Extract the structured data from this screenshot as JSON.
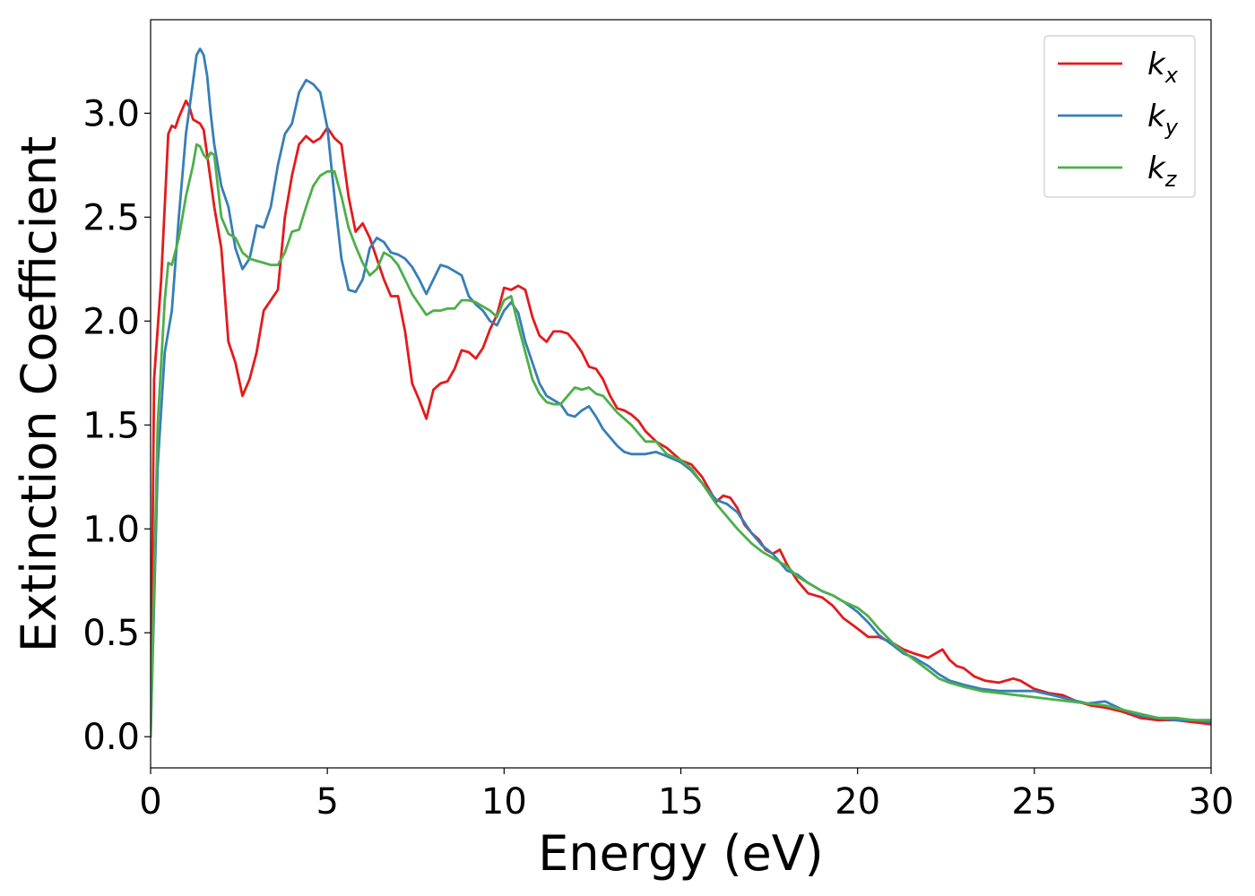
{
  "chart_data": {
    "type": "line",
    "title": "",
    "xlabel": "Energy (eV)",
    "ylabel": "Extinction Coefficient",
    "xlim": [
      0,
      30
    ],
    "ylim": [
      -0.15,
      3.45
    ],
    "xticks": [
      0,
      5,
      10,
      15,
      20,
      25,
      30
    ],
    "xtick_labels": [
      "0",
      "5",
      "10",
      "15",
      "20",
      "25",
      "30"
    ],
    "yticks": [
      0.0,
      0.5,
      1.0,
      1.5,
      2.0,
      2.5,
      3.0
    ],
    "ytick_labels": [
      "0.0",
      "0.5",
      "1.0",
      "1.5",
      "2.0",
      "2.5",
      "3.0"
    ],
    "grid": false,
    "legend_position": "top-right",
    "series": [
      {
        "name": "k",
        "subscript": "x",
        "color": "#e41a1c",
        "x": [
          0,
          0.1,
          0.3,
          0.5,
          0.6,
          0.7,
          0.8,
          1.0,
          1.1,
          1.2,
          1.3,
          1.4,
          1.5,
          1.6,
          1.8,
          2.0,
          2.2,
          2.4,
          2.6,
          2.8,
          3.0,
          3.2,
          3.4,
          3.6,
          3.8,
          4.0,
          4.2,
          4.4,
          4.6,
          4.8,
          5.0,
          5.2,
          5.4,
          5.6,
          5.8,
          6.0,
          6.2,
          6.4,
          6.6,
          6.8,
          7.0,
          7.2,
          7.4,
          7.6,
          7.8,
          8.0,
          8.2,
          8.4,
          8.6,
          8.8,
          9.0,
          9.2,
          9.4,
          9.6,
          9.8,
          10.0,
          10.2,
          10.4,
          10.6,
          10.8,
          11.0,
          11.2,
          11.4,
          11.6,
          11.8,
          12.0,
          12.2,
          12.4,
          12.6,
          12.8,
          13.0,
          13.2,
          13.4,
          13.6,
          13.8,
          14.0,
          14.3,
          14.6,
          15.0,
          15.3,
          15.6,
          16.0,
          16.2,
          16.4,
          16.6,
          16.8,
          17.0,
          17.2,
          17.4,
          17.6,
          17.8,
          18.0,
          18.3,
          18.6,
          19.0,
          19.3,
          19.6,
          20.0,
          20.3,
          20.6,
          21.0,
          21.3,
          21.6,
          22.0,
          22.2,
          22.4,
          22.6,
          22.8,
          23.0,
          23.3,
          23.6,
          24.0,
          24.4,
          24.6,
          25.0,
          25.4,
          25.8,
          26.2,
          26.6,
          27.0,
          27.5,
          28.0,
          28.5,
          29.0,
          29.5,
          30.0
        ],
        "y": [
          0.0,
          1.72,
          2.2,
          2.9,
          2.94,
          2.93,
          2.98,
          3.06,
          3.03,
          2.97,
          2.96,
          2.95,
          2.92,
          2.8,
          2.55,
          2.35,
          1.9,
          1.8,
          1.64,
          1.72,
          1.85,
          2.05,
          2.1,
          2.15,
          2.5,
          2.7,
          2.85,
          2.89,
          2.86,
          2.88,
          2.93,
          2.88,
          2.85,
          2.6,
          2.43,
          2.47,
          2.4,
          2.3,
          2.2,
          2.12,
          2.12,
          1.95,
          1.7,
          1.62,
          1.53,
          1.67,
          1.7,
          1.71,
          1.77,
          1.86,
          1.85,
          1.82,
          1.87,
          1.96,
          2.03,
          2.16,
          2.15,
          2.17,
          2.15,
          2.02,
          1.93,
          1.9,
          1.95,
          1.95,
          1.94,
          1.9,
          1.85,
          1.78,
          1.77,
          1.72,
          1.64,
          1.58,
          1.57,
          1.55,
          1.52,
          1.47,
          1.42,
          1.39,
          1.33,
          1.31,
          1.25,
          1.13,
          1.16,
          1.15,
          1.1,
          1.02,
          0.98,
          0.95,
          0.9,
          0.88,
          0.9,
          0.83,
          0.75,
          0.69,
          0.67,
          0.63,
          0.57,
          0.52,
          0.48,
          0.48,
          0.45,
          0.42,
          0.4,
          0.38,
          0.4,
          0.42,
          0.37,
          0.34,
          0.33,
          0.29,
          0.27,
          0.26,
          0.28,
          0.27,
          0.23,
          0.21,
          0.2,
          0.17,
          0.15,
          0.14,
          0.12,
          0.09,
          0.08,
          0.08,
          0.07,
          0.06
        ]
      },
      {
        "name": "k",
        "subscript": "y",
        "color": "#377eb8",
        "x": [
          0,
          0.2,
          0.4,
          0.6,
          0.8,
          1.0,
          1.2,
          1.3,
          1.4,
          1.5,
          1.6,
          1.7,
          1.8,
          2.0,
          2.2,
          2.4,
          2.6,
          2.8,
          3.0,
          3.2,
          3.4,
          3.6,
          3.8,
          4.0,
          4.2,
          4.4,
          4.6,
          4.8,
          5.0,
          5.2,
          5.4,
          5.6,
          5.8,
          6.0,
          6.2,
          6.4,
          6.6,
          6.8,
          7.0,
          7.2,
          7.4,
          7.6,
          7.8,
          8.0,
          8.2,
          8.4,
          8.6,
          8.8,
          9.0,
          9.2,
          9.4,
          9.6,
          9.8,
          10.0,
          10.2,
          10.4,
          10.6,
          10.8,
          11.0,
          11.2,
          11.4,
          11.6,
          11.8,
          12.0,
          12.2,
          12.4,
          12.6,
          12.8,
          13.0,
          13.2,
          13.4,
          13.6,
          13.8,
          14.0,
          14.3,
          14.6,
          15.0,
          15.3,
          15.6,
          16.0,
          16.3,
          16.6,
          16.8,
          17.0,
          17.3,
          17.6,
          18.0,
          18.3,
          18.6,
          19.0,
          19.3,
          19.6,
          20.0,
          20.3,
          20.6,
          21.0,
          21.3,
          21.6,
          22.0,
          22.3,
          22.6,
          23.0,
          23.5,
          24.0,
          24.5,
          25.0,
          25.5,
          26.0,
          26.5,
          27.0,
          27.5,
          28.0,
          28.5,
          29.0,
          29.5,
          30.0
        ],
        "y": [
          0.0,
          1.3,
          1.85,
          2.05,
          2.5,
          2.9,
          3.15,
          3.28,
          3.31,
          3.28,
          3.18,
          3.0,
          2.85,
          2.65,
          2.55,
          2.35,
          2.25,
          2.3,
          2.46,
          2.45,
          2.55,
          2.75,
          2.9,
          2.95,
          3.1,
          3.16,
          3.14,
          3.1,
          2.93,
          2.6,
          2.3,
          2.15,
          2.14,
          2.2,
          2.35,
          2.4,
          2.38,
          2.33,
          2.32,
          2.3,
          2.26,
          2.2,
          2.13,
          2.2,
          2.27,
          2.26,
          2.24,
          2.22,
          2.12,
          2.08,
          2.05,
          2.0,
          1.98,
          2.05,
          2.09,
          2.04,
          1.9,
          1.8,
          1.7,
          1.64,
          1.62,
          1.6,
          1.55,
          1.54,
          1.57,
          1.59,
          1.54,
          1.48,
          1.44,
          1.4,
          1.37,
          1.36,
          1.36,
          1.36,
          1.37,
          1.35,
          1.32,
          1.28,
          1.22,
          1.14,
          1.12,
          1.08,
          1.03,
          0.98,
          0.92,
          0.88,
          0.8,
          0.78,
          0.74,
          0.7,
          0.68,
          0.65,
          0.6,
          0.55,
          0.49,
          0.44,
          0.4,
          0.38,
          0.34,
          0.3,
          0.27,
          0.25,
          0.23,
          0.22,
          0.22,
          0.22,
          0.2,
          0.18,
          0.16,
          0.17,
          0.13,
          0.1,
          0.09,
          0.08,
          0.08,
          0.07
        ]
      },
      {
        "name": "k",
        "subscript": "z",
        "color": "#4daf4a",
        "x": [
          0,
          0.2,
          0.4,
          0.5,
          0.6,
          0.8,
          1.0,
          1.2,
          1.3,
          1.4,
          1.5,
          1.6,
          1.7,
          1.8,
          2.0,
          2.2,
          2.4,
          2.6,
          2.8,
          3.0,
          3.2,
          3.4,
          3.6,
          3.8,
          4.0,
          4.2,
          4.4,
          4.6,
          4.8,
          5.0,
          5.2,
          5.4,
          5.6,
          5.8,
          6.0,
          6.2,
          6.4,
          6.6,
          6.8,
          7.0,
          7.2,
          7.4,
          7.6,
          7.8,
          8.0,
          8.2,
          8.4,
          8.6,
          8.8,
          9.0,
          9.2,
          9.4,
          9.6,
          9.8,
          10.0,
          10.2,
          10.4,
          10.6,
          10.8,
          11.0,
          11.2,
          11.4,
          11.6,
          11.8,
          12.0,
          12.2,
          12.4,
          12.6,
          12.8,
          13.0,
          13.2,
          13.4,
          13.6,
          13.8,
          14.0,
          14.3,
          14.6,
          15.0,
          15.3,
          15.6,
          16.0,
          16.3,
          16.6,
          17.0,
          17.3,
          17.6,
          18.0,
          18.3,
          18.6,
          19.0,
          19.3,
          19.6,
          20.0,
          20.3,
          20.6,
          21.0,
          21.3,
          21.6,
          22.0,
          22.3,
          22.6,
          23.0,
          23.5,
          24.0,
          24.5,
          25.0,
          25.5,
          26.0,
          26.5,
          27.0,
          27.5,
          28.0,
          28.5,
          29.0,
          29.5,
          30.0
        ],
        "y": [
          0.0,
          1.5,
          2.1,
          2.28,
          2.27,
          2.4,
          2.6,
          2.75,
          2.85,
          2.84,
          2.8,
          2.78,
          2.81,
          2.8,
          2.5,
          2.42,
          2.4,
          2.33,
          2.3,
          2.29,
          2.28,
          2.27,
          2.27,
          2.33,
          2.43,
          2.44,
          2.55,
          2.65,
          2.7,
          2.72,
          2.72,
          2.6,
          2.45,
          2.36,
          2.28,
          2.22,
          2.25,
          2.33,
          2.31,
          2.27,
          2.2,
          2.13,
          2.08,
          2.03,
          2.05,
          2.05,
          2.06,
          2.06,
          2.1,
          2.1,
          2.09,
          2.07,
          2.05,
          2.02,
          2.1,
          2.12,
          1.98,
          1.85,
          1.72,
          1.65,
          1.61,
          1.6,
          1.6,
          1.64,
          1.68,
          1.67,
          1.68,
          1.65,
          1.64,
          1.6,
          1.56,
          1.53,
          1.5,
          1.46,
          1.42,
          1.42,
          1.36,
          1.33,
          1.29,
          1.22,
          1.12,
          1.06,
          1.0,
          0.93,
          0.89,
          0.86,
          0.82,
          0.77,
          0.74,
          0.7,
          0.68,
          0.65,
          0.62,
          0.58,
          0.52,
          0.45,
          0.41,
          0.37,
          0.32,
          0.28,
          0.26,
          0.24,
          0.22,
          0.21,
          0.2,
          0.19,
          0.18,
          0.17,
          0.16,
          0.15,
          0.13,
          0.11,
          0.09,
          0.09,
          0.08,
          0.08
        ]
      }
    ]
  }
}
